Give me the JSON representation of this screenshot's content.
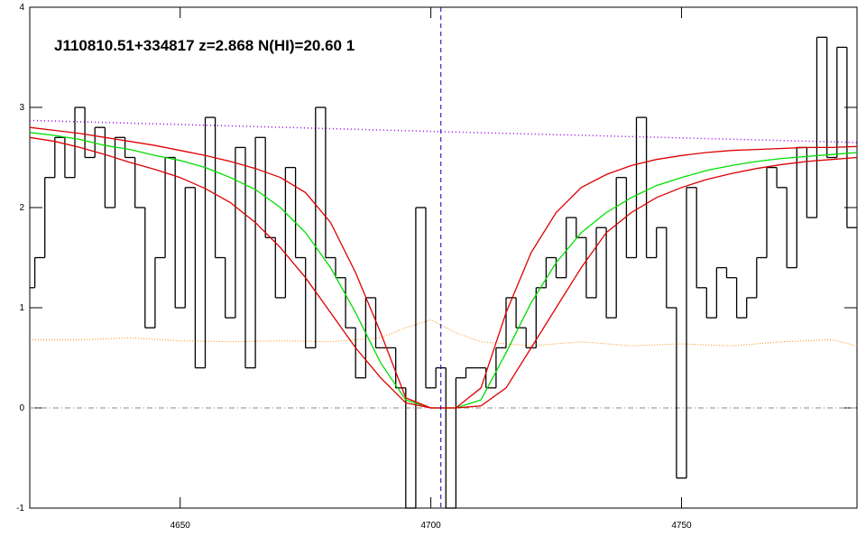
{
  "chart_data": {
    "type": "spectrum",
    "title": "J110810.51+334817 z=2.868 N(HI)=20.60 1",
    "xlim": [
      4620,
      4785
    ],
    "ylim": [
      -1,
      4
    ],
    "xticks": [
      4650,
      4700,
      4750
    ],
    "yticks": [
      -1,
      0,
      1,
      2,
      3,
      4
    ],
    "zero_line": 0,
    "marker_x": 4702,
    "flux": {
      "color": "#000000",
      "x": [
        4620,
        4622,
        4624,
        4626,
        4628,
        4630,
        4632,
        4634,
        4636,
        4638,
        4640,
        4642,
        4644,
        4646,
        4648,
        4650,
        4652,
        4654,
        4656,
        4658,
        4660,
        4662,
        4664,
        4666,
        4668,
        4670,
        4672,
        4674,
        4676,
        4678,
        4680,
        4682,
        4684,
        4686,
        4688,
        4690,
        4692,
        4694,
        4696,
        4698,
        4700,
        4702,
        4704,
        4706,
        4708,
        4710,
        4712,
        4714,
        4716,
        4718,
        4720,
        4722,
        4724,
        4726,
        4728,
        4730,
        4732,
        4734,
        4736,
        4738,
        4740,
        4742,
        4744,
        4746,
        4748,
        4750,
        4752,
        4754,
        4756,
        4758,
        4760,
        4762,
        4764,
        4766,
        4768,
        4770,
        4772,
        4774,
        4776,
        4778,
        4780,
        4782,
        4784
      ],
      "values": [
        1.2,
        1.5,
        2.3,
        2.7,
        2.3,
        3.0,
        2.5,
        2.8,
        2.0,
        2.7,
        2.5,
        2.0,
        0.8,
        1.5,
        2.5,
        1.0,
        2.2,
        0.4,
        2.9,
        1.5,
        0.9,
        2.6,
        0.4,
        2.7,
        1.7,
        1.1,
        2.4,
        1.5,
        0.6,
        3.0,
        1.5,
        1.3,
        0.8,
        0.3,
        1.1,
        0.6,
        0.6,
        0.2,
        -1.0,
        2.0,
        0.2,
        0.4,
        -1.0,
        0.3,
        0.4,
        0.4,
        0.2,
        0.6,
        1.1,
        0.8,
        0.6,
        1.2,
        1.5,
        1.3,
        1.9,
        1.7,
        1.1,
        1.8,
        0.9,
        2.3,
        1.5,
        2.9,
        1.5,
        1.8,
        1.0,
        -0.7,
        2.2,
        1.2,
        0.9,
        1.4,
        1.3,
        0.9,
        1.1,
        1.5,
        2.4,
        2.2,
        1.4,
        2.6,
        1.9,
        3.7,
        2.5,
        3.6,
        1.8
      ]
    },
    "model_x": [
      4620,
      4625,
      4630,
      4635,
      4640,
      4645,
      4650,
      4655,
      4660,
      4665,
      4670,
      4675,
      4680,
      4685,
      4690,
      4695,
      4700,
      4705,
      4710,
      4715,
      4720,
      4725,
      4730,
      4735,
      4740,
      4745,
      4750,
      4755,
      4760,
      4765,
      4770,
      4775,
      4780,
      4785
    ],
    "models": [
      {
        "color": "#00dd00",
        "values": [
          2.75,
          2.72,
          2.68,
          2.62,
          2.58,
          2.52,
          2.47,
          2.4,
          2.3,
          2.18,
          2.0,
          1.75,
          1.4,
          0.95,
          0.45,
          0.08,
          0.0,
          0.0,
          0.08,
          0.55,
          1.05,
          1.45,
          1.75,
          1.95,
          2.1,
          2.22,
          2.3,
          2.37,
          2.42,
          2.46,
          2.49,
          2.51,
          2.53,
          2.55
        ]
      },
      {
        "color": "#dd0000",
        "values": [
          2.8,
          2.77,
          2.74,
          2.7,
          2.66,
          2.62,
          2.57,
          2.52,
          2.46,
          2.39,
          2.3,
          2.15,
          1.85,
          1.35,
          0.75,
          0.1,
          0.0,
          0.0,
          0.2,
          0.95,
          1.55,
          1.95,
          2.2,
          2.33,
          2.42,
          2.48,
          2.52,
          2.55,
          2.57,
          2.58,
          2.59,
          2.6,
          2.6,
          2.61
        ]
      },
      {
        "color": "#dd0000",
        "values": [
          2.7,
          2.66,
          2.6,
          2.53,
          2.45,
          2.38,
          2.3,
          2.19,
          2.05,
          1.85,
          1.6,
          1.3,
          0.95,
          0.6,
          0.3,
          0.05,
          0.0,
          0.0,
          0.02,
          0.2,
          0.6,
          1.0,
          1.4,
          1.75,
          1.95,
          2.1,
          2.2,
          2.28,
          2.34,
          2.39,
          2.43,
          2.46,
          2.48,
          2.5
        ]
      }
    ],
    "continuum": {
      "color": "#9900ee",
      "x": [
        4620,
        4700,
        4785
      ],
      "values": [
        2.87,
        2.76,
        2.65
      ]
    },
    "error": {
      "color": "#ff8800",
      "x": [
        4620,
        4630,
        4640,
        4650,
        4660,
        4670,
        4680,
        4690,
        4695,
        4700,
        4705,
        4710,
        4720,
        4730,
        4740,
        4750,
        4760,
        4770,
        4780,
        4785
      ],
      "values": [
        0.68,
        0.68,
        0.7,
        0.67,
        0.66,
        0.67,
        0.66,
        0.7,
        0.8,
        0.88,
        0.75,
        0.66,
        0.62,
        0.66,
        0.62,
        0.64,
        0.62,
        0.66,
        0.68,
        0.62
      ]
    }
  }
}
